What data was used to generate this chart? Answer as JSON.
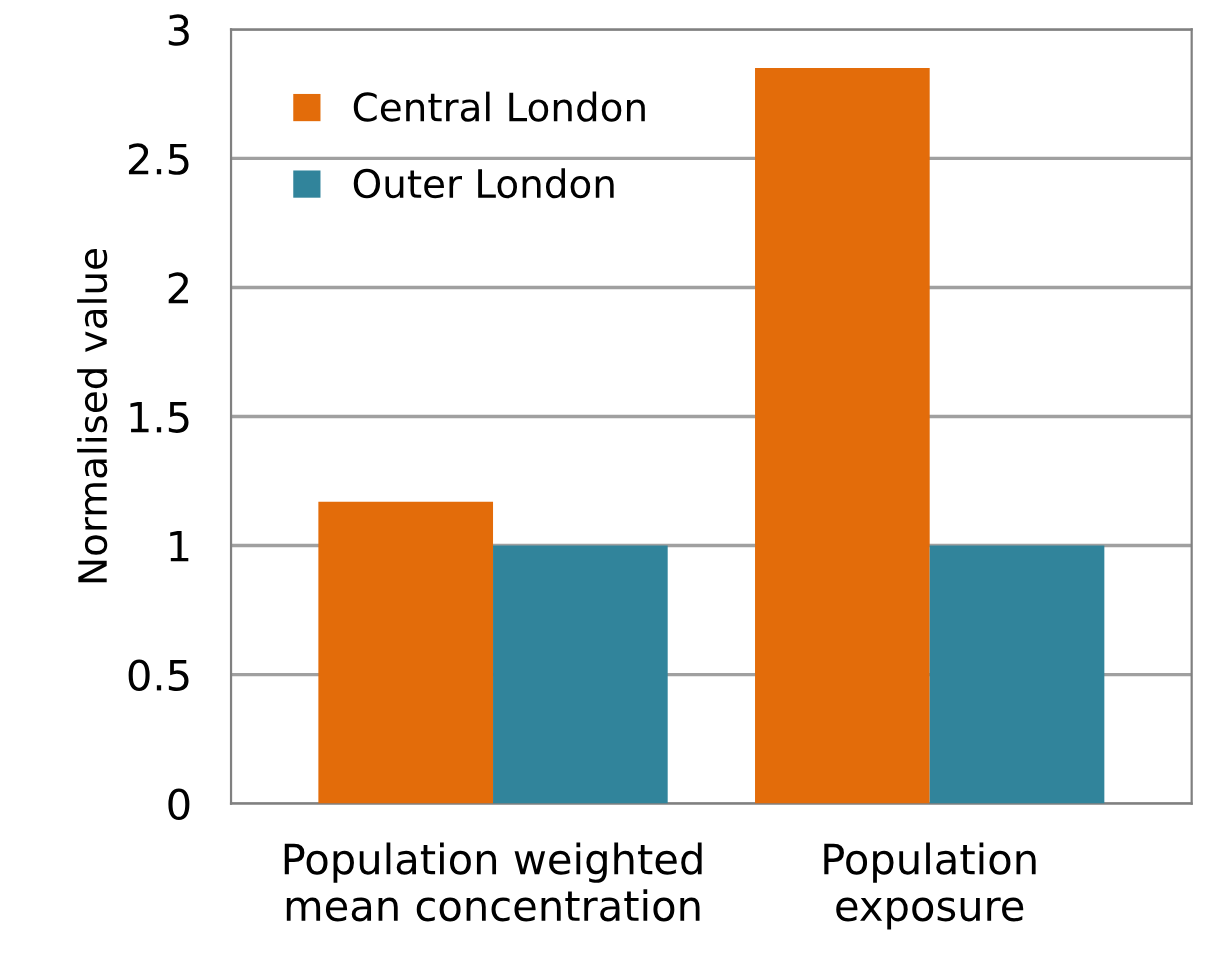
{
  "chart_data": {
    "type": "bar",
    "ylabel": "Normalised value",
    "categories": [
      "Population weighted\nmean concentration",
      "Population\nexposure"
    ],
    "series": [
      {
        "name": "Central London",
        "color": "#e36c0a",
        "values": [
          1.17,
          2.85
        ]
      },
      {
        "name": "Outer London",
        "color": "#31849b",
        "values": [
          1,
          1
        ]
      }
    ],
    "ylim": [
      0,
      3
    ],
    "yticks": [
      0,
      0.5,
      1,
      1.5,
      2,
      2.5,
      3
    ],
    "grid": "y",
    "legend": "top left"
  }
}
